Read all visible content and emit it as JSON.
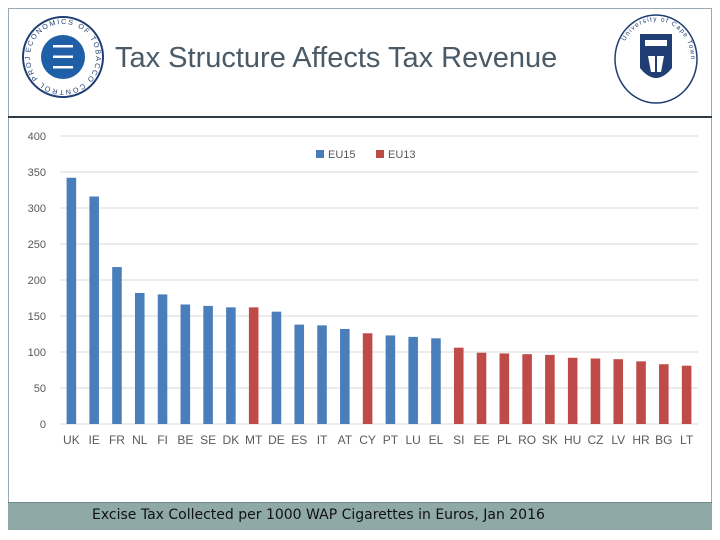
{
  "header": {
    "title": "Tax Structure Affects Tax Revenue",
    "left_logo_text": "ECONOMICS OF TOBACCO CONTROL PROJECT",
    "right_logo_text": "University of Cape Town"
  },
  "caption": "Excise Tax Collected per 1000 WAP Cigarettes in Euros, Jan 2016",
  "colors": {
    "eu15": "#4a7ebb",
    "eu13": "#be4b48",
    "grid": "#d9d9d9"
  },
  "chart_data": {
    "type": "bar",
    "title": "Tax Structure Affects Tax Revenue",
    "xlabel": "",
    "ylabel": "",
    "ylim": [
      0,
      400
    ],
    "yticks": [
      0,
      50,
      100,
      150,
      200,
      250,
      300,
      350,
      400
    ],
    "grid": true,
    "legend_position": "top-center",
    "legend": [
      {
        "name": "EU15",
        "color": "#4a7ebb"
      },
      {
        "name": "EU13",
        "color": "#be4b48"
      }
    ],
    "categories": [
      "UK",
      "IE",
      "FR",
      "NL",
      "FI",
      "BE",
      "SE",
      "DK",
      "MT",
      "DE",
      "ES",
      "IT",
      "AT",
      "CY",
      "PT",
      "LU",
      "EL",
      "SI",
      "EE",
      "PL",
      "RO",
      "SK",
      "HU",
      "CZ",
      "LV",
      "HR",
      "BG",
      "LT"
    ],
    "values": [
      342,
      316,
      218,
      182,
      180,
      166,
      164,
      162,
      162,
      156,
      138,
      137,
      132,
      126,
      123,
      121,
      119,
      106,
      99,
      98,
      97,
      96,
      92,
      91,
      90,
      87,
      83,
      81
    ],
    "groups": [
      "EU15",
      "EU15",
      "EU15",
      "EU15",
      "EU15",
      "EU15",
      "EU15",
      "EU15",
      "EU13",
      "EU15",
      "EU15",
      "EU15",
      "EU15",
      "EU13",
      "EU15",
      "EU15",
      "EU15",
      "EU13",
      "EU13",
      "EU13",
      "EU13",
      "EU13",
      "EU13",
      "EU13",
      "EU13",
      "EU13",
      "EU13",
      "EU13"
    ]
  }
}
